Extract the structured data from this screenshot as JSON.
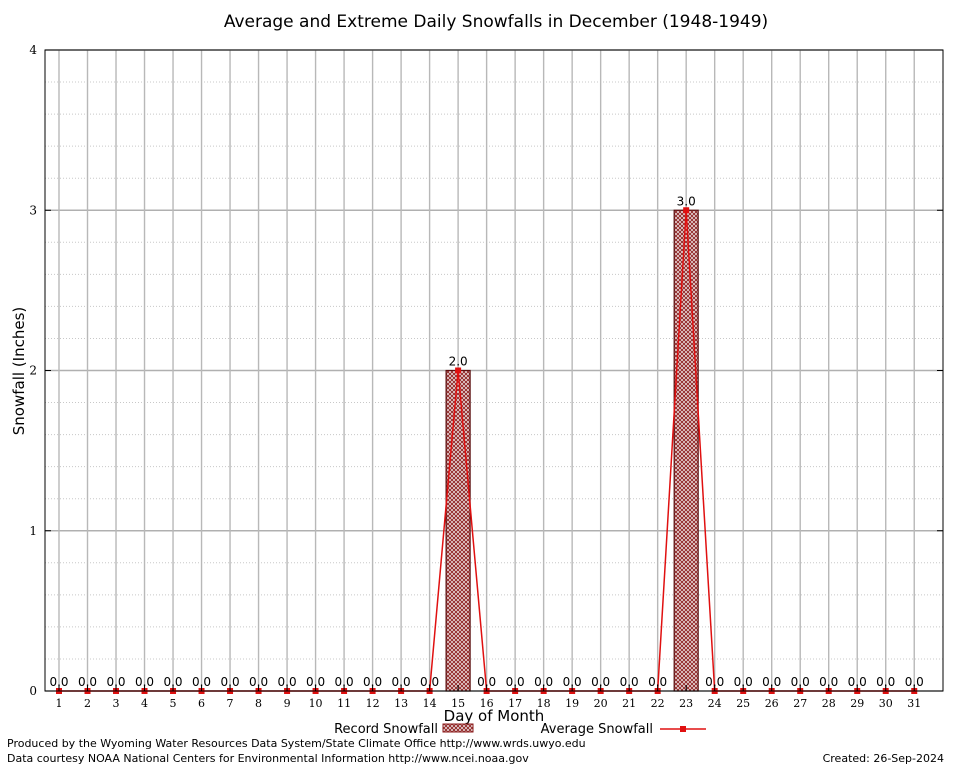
{
  "chart_data": {
    "type": "bar",
    "title": "Average and Extreme Daily Snowfalls in December (1948-1949)",
    "xlabel": "Day of Month",
    "ylabel": "Snowfall (Inches)",
    "ylim": [
      0,
      4
    ],
    "yticks": [
      "0",
      "1",
      "2",
      "3",
      "4"
    ],
    "categories": [
      "1",
      "2",
      "3",
      "4",
      "5",
      "6",
      "7",
      "8",
      "9",
      "10",
      "11",
      "12",
      "13",
      "14",
      "15",
      "16",
      "17",
      "18",
      "19",
      "20",
      "21",
      "22",
      "23",
      "24",
      "25",
      "26",
      "27",
      "28",
      "29",
      "30",
      "31"
    ],
    "series": [
      {
        "name": "Record Snowfall",
        "kind": "bar",
        "values": [
          0,
          0,
          0,
          0,
          0,
          0,
          0,
          0,
          0,
          0,
          0,
          0,
          0,
          0,
          2.0,
          0,
          0,
          0,
          0,
          0,
          0,
          0,
          3.0,
          0,
          0,
          0,
          0,
          0,
          0,
          0,
          0
        ],
        "labels": [
          "0.0",
          "0.0",
          "0.0",
          "0.0",
          "0.0",
          "0.0",
          "0.0",
          "0.0",
          "0.0",
          "0.0",
          "0.0",
          "0.0",
          "0.0",
          "0.0",
          "2.0",
          "0.0",
          "0.0",
          "0.0",
          "0.0",
          "0.0",
          "0.0",
          "0.0",
          "3.0",
          "0.0",
          "0.0",
          "0.0",
          "0.0",
          "0.0",
          "0.0",
          "0.0",
          "0.0"
        ],
        "color": "#8b1a1a"
      },
      {
        "name": "Average Snowfall",
        "kind": "line",
        "values": [
          0,
          0,
          0,
          0,
          0,
          0,
          0,
          0,
          0,
          0,
          0,
          0,
          0,
          0,
          2.0,
          0,
          0,
          0,
          0,
          0,
          0,
          0,
          3.0,
          0,
          0,
          0,
          0,
          0,
          0,
          0,
          0
        ],
        "color": "#e01010"
      }
    ],
    "grid": true,
    "legend": "bottom-center"
  },
  "footer": {
    "left_line1": "Produced by the Wyoming Water Resources Data System/State Climate Office http://www.wrds.uwyo.edu",
    "left_line2": "Data courtesy NOAA National Centers for Environmental Information http://www.ncei.noaa.gov",
    "right": "Created:  26-Sep-2024"
  }
}
